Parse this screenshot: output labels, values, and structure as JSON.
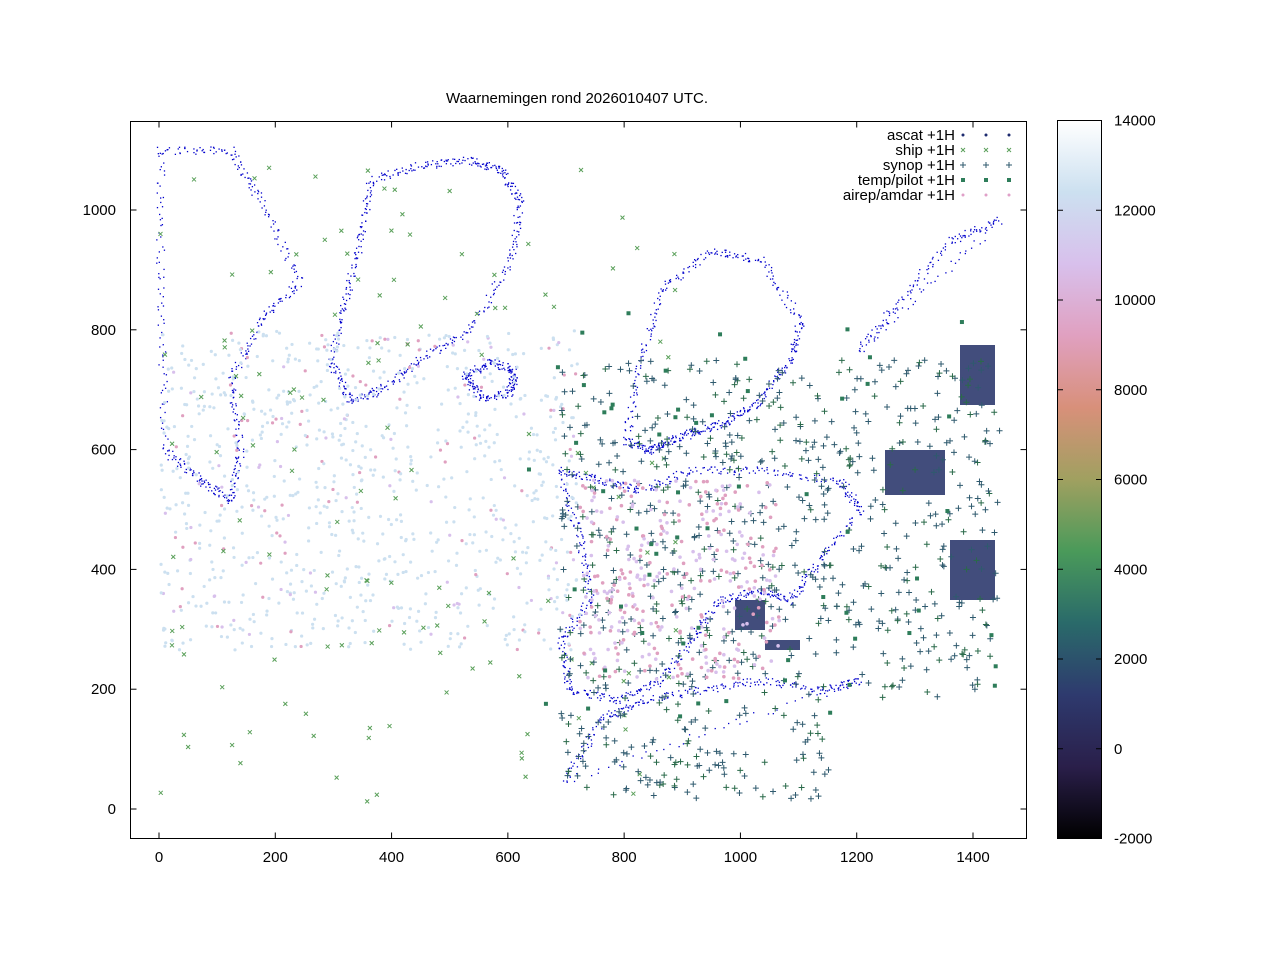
{
  "chart_data": {
    "type": "scatter",
    "title": "Waarnemingen rond 2026010407 UTC.",
    "xlabel": "",
    "ylabel": "",
    "xlim": [
      -50,
      1490
    ],
    "ylim": [
      -50,
      1150
    ],
    "x_ticks": [
      0,
      200,
      400,
      600,
      800,
      1000,
      1200,
      1400
    ],
    "y_ticks": [
      0,
      200,
      400,
      600,
      800,
      1000
    ],
    "grid": false,
    "legend_position": "top-right",
    "series": [
      {
        "name": "ascat +1H",
        "marker": "dot",
        "color": "#1c2a6e"
      },
      {
        "name": "ship +1H",
        "marker": "x",
        "color": "#5aa05a"
      },
      {
        "name": "synop +1H",
        "marker": "plus",
        "color": "#2f5a6e"
      },
      {
        "name": "temp/pilot +1H",
        "marker": "square",
        "color": "#2e7d5a"
      },
      {
        "name": "airep/amdar +1H",
        "marker": "dot",
        "color": "#e0a0c8"
      }
    ],
    "colorbar": {
      "min": -2000,
      "max": 14000,
      "ticks": [
        -2000,
        0,
        2000,
        4000,
        6000,
        8000,
        10000,
        12000,
        14000
      ],
      "colors": [
        "#000000",
        "#2a1f4a",
        "#2e3a6e",
        "#2a6a6a",
        "#4a9a5a",
        "#a0a060",
        "#d8907a",
        "#e0a0c0",
        "#d8c0ec",
        "#cce0f0",
        "#ffffff"
      ]
    },
    "land_outline_color": "#0000cc"
  }
}
